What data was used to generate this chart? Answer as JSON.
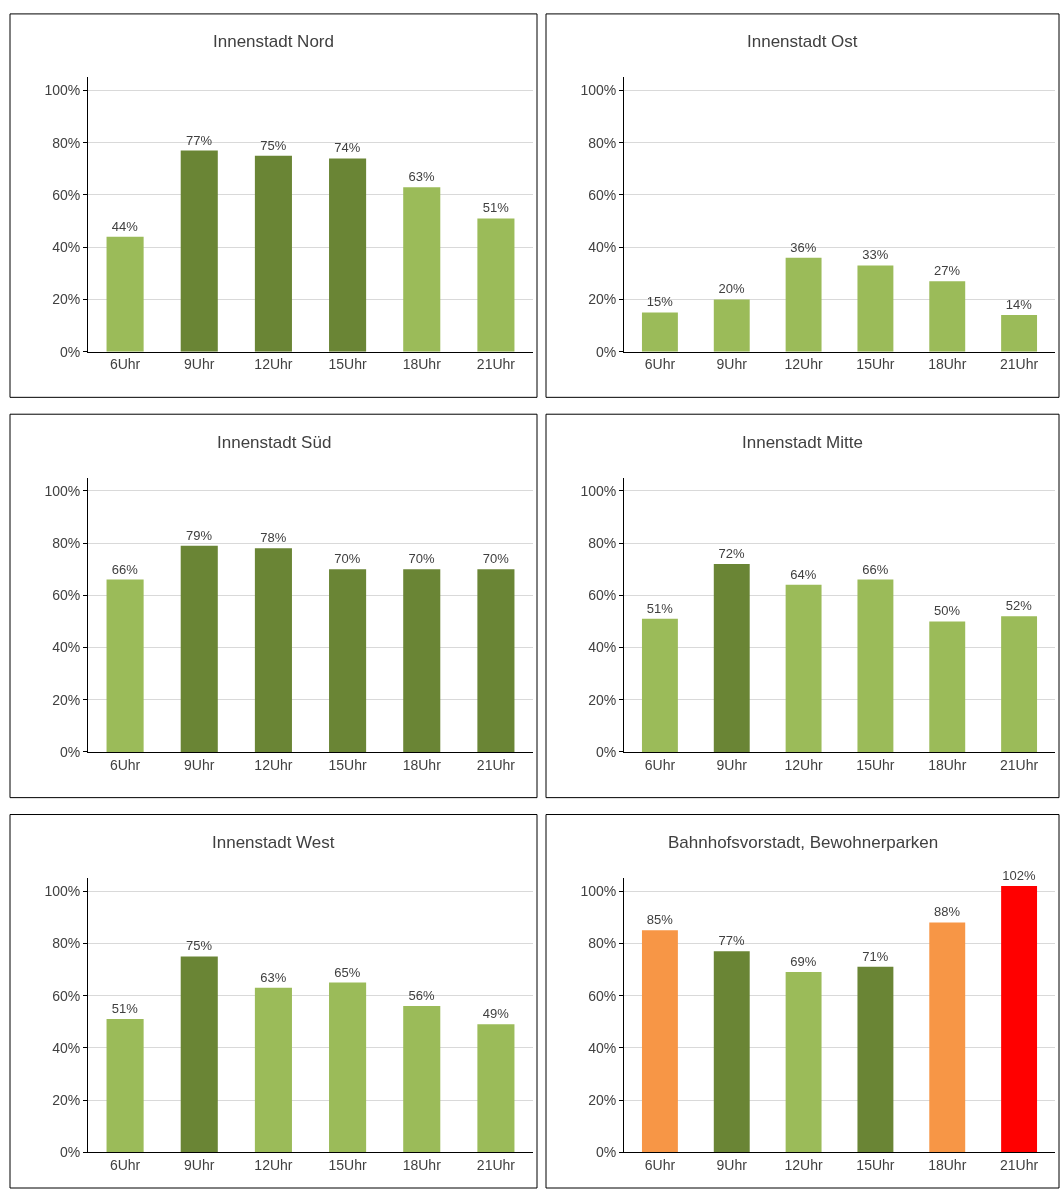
{
  "chart_data": [
    {
      "type": "bar",
      "title": "Innenstadt Nord",
      "categories": [
        "6Uhr",
        "9Uhr",
        "12Uhr",
        "15Uhr",
        "18Uhr",
        "21Uhr"
      ],
      "values": [
        44,
        77,
        75,
        74,
        63,
        51
      ],
      "value_labels": [
        "44%",
        "77%",
        "75%",
        "74%",
        "63%",
        "51%"
      ],
      "colors": [
        "#9bbb59",
        "#6a8535",
        "#6a8535",
        "#6a8535",
        "#9bbb59",
        "#9bbb59"
      ],
      "ylim": [
        0,
        105
      ],
      "yticks": [
        {
          "value": 0,
          "label": "0%"
        },
        {
          "value": 20,
          "label": "20%"
        },
        {
          "value": 40,
          "label": "40%"
        },
        {
          "value": 60,
          "label": "60%"
        },
        {
          "value": 80,
          "label": "80%"
        },
        {
          "value": 100,
          "label": "100%"
        }
      ],
      "grid": "y"
    },
    {
      "type": "bar",
      "title": "Innenstadt Ost",
      "categories": [
        "6Uhr",
        "9Uhr",
        "12Uhr",
        "15Uhr",
        "18Uhr",
        "21Uhr"
      ],
      "values": [
        15,
        20,
        36,
        33,
        27,
        14
      ],
      "value_labels": [
        "15%",
        "20%",
        "36%",
        "33%",
        "27%",
        "14%"
      ],
      "colors": [
        "#9bbb59",
        "#9bbb59",
        "#9bbb59",
        "#9bbb59",
        "#9bbb59",
        "#9bbb59"
      ],
      "ylim": [
        0,
        105
      ],
      "yticks": [
        {
          "value": 0,
          "label": "0%"
        },
        {
          "value": 20,
          "label": "20%"
        },
        {
          "value": 40,
          "label": "40%"
        },
        {
          "value": 60,
          "label": "60%"
        },
        {
          "value": 80,
          "label": "80%"
        },
        {
          "value": 100,
          "label": "100%"
        }
      ],
      "grid": "y"
    },
    {
      "type": "bar",
      "title": "Innenstadt Süd",
      "categories": [
        "6Uhr",
        "9Uhr",
        "12Uhr",
        "15Uhr",
        "18Uhr",
        "21Uhr"
      ],
      "values": [
        66,
        79,
        78,
        70,
        70,
        70
      ],
      "value_labels": [
        "66%",
        "79%",
        "78%",
        "70%",
        "70%",
        "70%"
      ],
      "colors": [
        "#9bbb59",
        "#6a8535",
        "#6a8535",
        "#6a8535",
        "#6a8535",
        "#6a8535"
      ],
      "ylim": [
        0,
        105
      ],
      "yticks": [
        {
          "value": 0,
          "label": "0%"
        },
        {
          "value": 20,
          "label": "20%"
        },
        {
          "value": 40,
          "label": "40%"
        },
        {
          "value": 60,
          "label": "60%"
        },
        {
          "value": 80,
          "label": "80%"
        },
        {
          "value": 100,
          "label": "100%"
        }
      ],
      "grid": "y"
    },
    {
      "type": "bar",
      "title": "Innenstadt Mitte",
      "categories": [
        "6Uhr",
        "9Uhr",
        "12Uhr",
        "15Uhr",
        "18Uhr",
        "21Uhr"
      ],
      "values": [
        51,
        72,
        64,
        66,
        50,
        52
      ],
      "value_labels": [
        "51%",
        "72%",
        "64%",
        "66%",
        "50%",
        "52%"
      ],
      "colors": [
        "#9bbb59",
        "#6a8535",
        "#9bbb59",
        "#9bbb59",
        "#9bbb59",
        "#9bbb59"
      ],
      "ylim": [
        0,
        105
      ],
      "yticks": [
        {
          "value": 0,
          "label": "0%"
        },
        {
          "value": 20,
          "label": "20%"
        },
        {
          "value": 40,
          "label": "40%"
        },
        {
          "value": 60,
          "label": "60%"
        },
        {
          "value": 80,
          "label": "80%"
        },
        {
          "value": 100,
          "label": "100%"
        }
      ],
      "grid": "y"
    },
    {
      "type": "bar",
      "title": "Innenstadt West",
      "categories": [
        "6Uhr",
        "9Uhr",
        "12Uhr",
        "15Uhr",
        "18Uhr",
        "21Uhr"
      ],
      "values": [
        51,
        75,
        63,
        65,
        56,
        49
      ],
      "value_labels": [
        "51%",
        "75%",
        "63%",
        "65%",
        "56%",
        "49%"
      ],
      "colors": [
        "#9bbb59",
        "#6a8535",
        "#9bbb59",
        "#9bbb59",
        "#9bbb59",
        "#9bbb59"
      ],
      "ylim": [
        0,
        105
      ],
      "yticks": [
        {
          "value": 0,
          "label": "0%"
        },
        {
          "value": 20,
          "label": "20%"
        },
        {
          "value": 40,
          "label": "40%"
        },
        {
          "value": 60,
          "label": "60%"
        },
        {
          "value": 80,
          "label": "80%"
        },
        {
          "value": 100,
          "label": "100%"
        }
      ],
      "grid": "y"
    },
    {
      "type": "bar",
      "title": "Bahnhofsvorstadt, Bewohnerparken",
      "categories": [
        "6Uhr",
        "9Uhr",
        "12Uhr",
        "15Uhr",
        "18Uhr",
        "21Uhr"
      ],
      "values": [
        85,
        77,
        69,
        71,
        88,
        102
      ],
      "value_labels": [
        "85%",
        "77%",
        "69%",
        "71%",
        "88%",
        "102%"
      ],
      "colors": [
        "#f79646",
        "#6a8535",
        "#9bbb59",
        "#6a8535",
        "#f79646",
        "#ff0000"
      ],
      "ylim": [
        0,
        105
      ],
      "yticks": [
        {
          "value": 0,
          "label": "0%"
        },
        {
          "value": 20,
          "label": "20%"
        },
        {
          "value": 40,
          "label": "40%"
        },
        {
          "value": 60,
          "label": "60%"
        },
        {
          "value": 80,
          "label": "80%"
        },
        {
          "value": 100,
          "label": "100%"
        }
      ],
      "grid": "y"
    }
  ]
}
